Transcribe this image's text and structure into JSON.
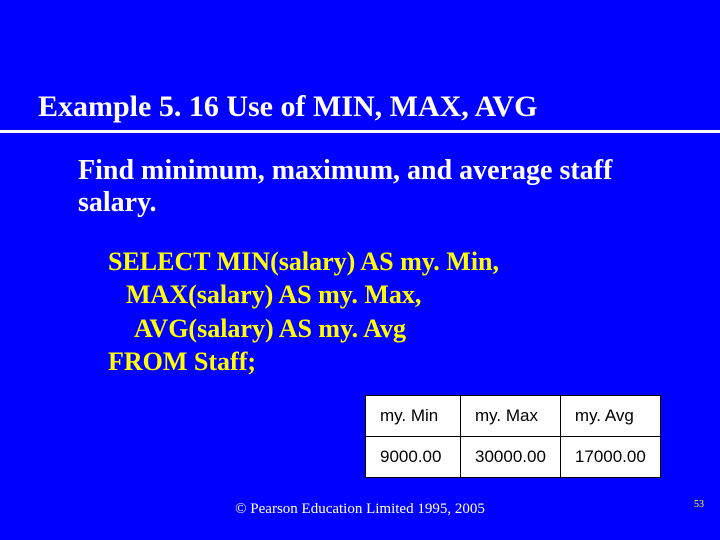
{
  "title": "Example 5. 16  Use of MIN, MAX, AVG",
  "description": "Find minimum, maximum, and average staff salary.",
  "sql": {
    "line1": "SELECT MIN(salary) AS my. Min,",
    "line2": "MAX(salary) AS my. Max,",
    "line3": "AVG(salary) AS my. Avg",
    "line4": "FROM Staff;"
  },
  "table": {
    "headers": [
      "my. Min",
      "my. Max",
      "my. Avg"
    ],
    "row": [
      "9000.00",
      "30000.00",
      "17000.00"
    ]
  },
  "footer": "© Pearson Education Limited 1995, 2005",
  "page_number": "53",
  "colors": {
    "background": "#0000ff",
    "title_text": "#ffffff",
    "underline": "#ffffff",
    "body_text": "#ffffff",
    "sql_text": "#ffff00",
    "table_bg": "#ffffff",
    "table_border": "#000000",
    "pagenum": "#ffff00"
  },
  "fonts": {
    "title_size_pt": 30,
    "body_size_pt": 28,
    "sql_size_pt": 26,
    "table_size_pt": 17,
    "footer_size_pt": 15
  }
}
